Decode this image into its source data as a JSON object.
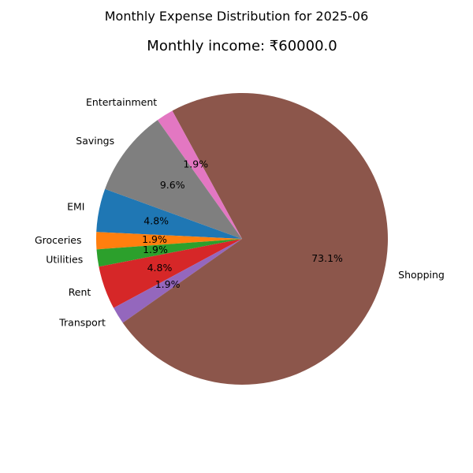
{
  "chart_data": {
    "type": "pie",
    "suptitle": "Monthly Expense Distribution for 2025-06",
    "title": "Monthly income: ₹60000.0",
    "start_angle_deg": 160,
    "direction": "counterclockwise",
    "categories": [
      "EMI",
      "Groceries",
      "Utilities",
      "Rent",
      "Transport",
      "Shopping",
      "Entertainment",
      "Savings"
    ],
    "values": [
      4.8,
      1.9,
      1.9,
      4.8,
      1.9,
      73.1,
      1.9,
      9.6
    ],
    "labels": [
      "4.8%",
      "1.9%",
      "1.9%",
      "4.8%",
      "1.9%",
      "73.1%",
      "1.9%",
      "9.6%"
    ],
    "colors": [
      "#1f77b4",
      "#ff7f0e",
      "#2ca02c",
      "#d62728",
      "#9467bd",
      "#8c564b",
      "#e377c2",
      "#7f7f7f"
    ]
  }
}
